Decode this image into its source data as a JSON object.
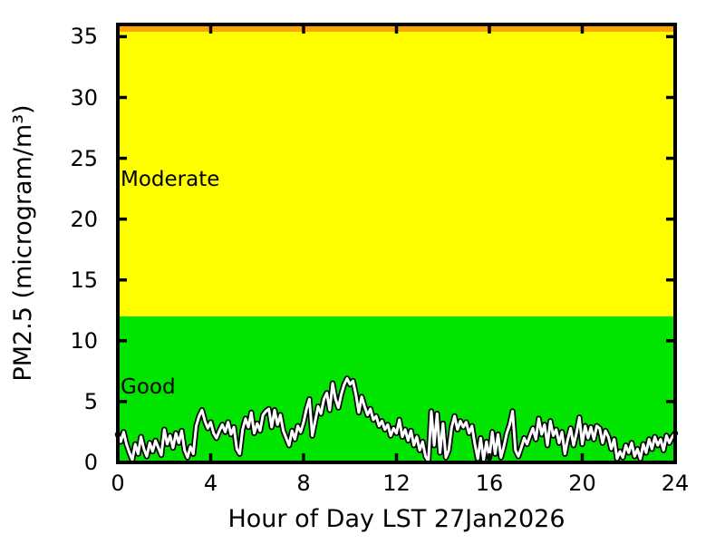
{
  "chart_data": {
    "type": "line",
    "title": "",
    "xlabel": "Hour of Day LST 27Jan2026",
    "ylabel": "PM2.5 (microgram/m³)",
    "xlim": [
      0,
      24
    ],
    "ylim": [
      0,
      36
    ],
    "x_ticks": [
      0,
      4,
      8,
      12,
      16,
      20,
      24
    ],
    "y_ticks": [
      0,
      5,
      10,
      15,
      20,
      25,
      30,
      35
    ],
    "grid": false,
    "legend": false,
    "axis_color": "#000000",
    "bands": [
      {
        "label": "Good",
        "from": 0,
        "to": 12,
        "color": "#00e400"
      },
      {
        "label": "Moderate",
        "from": 12,
        "to": 35.4,
        "color": "#ffff00"
      },
      {
        "label": "",
        "from": 35.4,
        "to": 36,
        "color": "#ffa500"
      }
    ],
    "series": [
      {
        "name": "PM2.5",
        "line_color": "#ffffff",
        "outline_color": "#000000",
        "x_start": 0,
        "x_step": 0.125,
        "values": [
          2.3,
          1.7,
          2.5,
          1.5,
          0.8,
          0.2,
          1.5,
          0.7,
          2.1,
          1.1,
          0.5,
          1.6,
          0.9,
          1.8,
          1.2,
          0.6,
          2.7,
          1.5,
          2.2,
          1.2,
          2.4,
          1.6,
          2.6,
          1.0,
          0.4,
          1.3,
          0.7,
          3.0,
          3.8,
          4.3,
          3.4,
          2.8,
          3.3,
          2.4,
          2.0,
          2.6,
          3.1,
          2.5,
          3.3,
          2.3,
          2.9,
          1.1,
          0.7,
          2.7,
          3.6,
          2.9,
          4.1,
          2.4,
          3.2,
          2.6,
          3.9,
          4.2,
          4.4,
          2.9,
          4.3,
          3.1,
          3.9,
          2.6,
          2.0,
          1.4,
          2.6,
          1.9,
          3.0,
          2.5,
          3.3,
          4.4,
          5.2,
          2.2,
          3.4,
          4.6,
          4.0,
          5.2,
          5.7,
          4.3,
          6.5,
          5.2,
          4.5,
          5.6,
          6.4,
          6.9,
          6.4,
          6.7,
          5.6,
          4.1,
          5.4,
          4.6,
          3.9,
          4.4,
          3.5,
          3.8,
          3.0,
          3.4,
          2.7,
          3.1,
          2.2,
          2.8,
          2.4,
          3.5,
          2.1,
          2.7,
          1.8,
          2.6,
          1.4,
          2.1,
          1.0,
          1.7,
          0.5,
          0.1,
          4.2,
          1.4,
          4.0,
          0.8,
          3.2,
          0.4,
          1.0,
          2.9,
          3.8,
          2.7,
          3.4,
          2.9,
          3.3,
          2.4,
          3.0,
          1.5,
          0.3,
          2.0,
          0.2,
          1.7,
          0.4,
          2.5,
          0.7,
          2.3,
          0.4,
          1.3,
          2.4,
          3.1,
          4.2,
          1.0,
          0.5,
          1.2,
          2.0,
          1.5,
          2.2,
          2.8,
          1.9,
          3.6,
          2.3,
          3.1,
          1.4,
          3.4,
          2.2,
          2.7,
          1.6,
          2.5,
          0.7,
          1.9,
          2.8,
          1.4,
          2.4,
          3.7,
          1.5,
          3.0,
          2.0,
          2.9,
          1.9,
          3.0,
          2.8,
          1.6,
          2.6,
          2.1,
          1.1,
          1.9,
          0.3,
          0.9,
          0.4,
          1.4,
          0.8,
          1.6,
          0.5,
          1.1,
          0.3,
          1.5,
          0.8,
          1.9,
          1.1,
          2.1,
          1.4,
          1.9,
          1.0,
          2.2,
          1.6,
          2.1,
          2.4
        ]
      }
    ]
  }
}
